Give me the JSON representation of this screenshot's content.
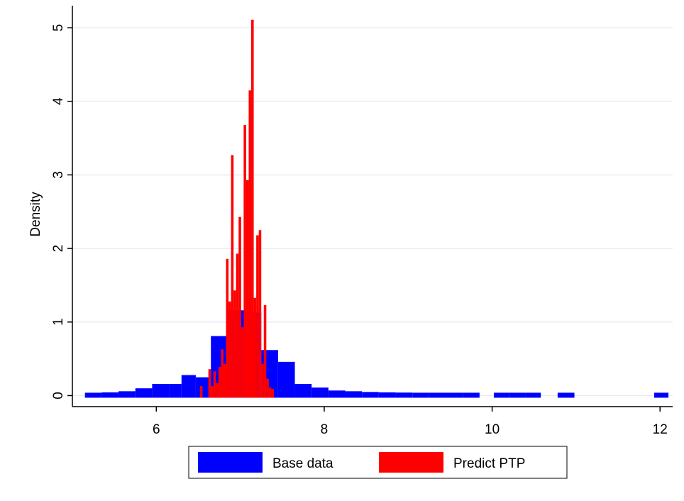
{
  "chart_data": {
    "type": "histogram",
    "title": "",
    "xlabel": "",
    "ylabel": "Density",
    "xlim": [
      5.0,
      12.15
    ],
    "ylim": [
      -0.15,
      5.3
    ],
    "xticks": [
      6,
      8,
      10,
      12
    ],
    "yticks": [
      0,
      1,
      2,
      3,
      4,
      5
    ],
    "grid": "horizontal",
    "legend_position": "bottom",
    "series": [
      {
        "name": "Base data",
        "color": "#0000FF",
        "bins": [
          {
            "x0": 5.15,
            "x1": 5.35,
            "y": 0.01
          },
          {
            "x0": 5.35,
            "x1": 5.55,
            "y": 0.015
          },
          {
            "x0": 5.55,
            "x1": 5.75,
            "y": 0.03
          },
          {
            "x0": 5.75,
            "x1": 5.95,
            "y": 0.07
          },
          {
            "x0": 5.95,
            "x1": 6.15,
            "y": 0.13
          },
          {
            "x0": 6.15,
            "x1": 6.3,
            "y": 0.13
          },
          {
            "x0": 6.3,
            "x1": 6.47,
            "y": 0.25
          },
          {
            "x0": 6.47,
            "x1": 6.65,
            "y": 0.22
          },
          {
            "x0": 6.65,
            "x1": 6.85,
            "y": 0.78
          },
          {
            "x0": 6.85,
            "x1": 7.05,
            "y": 1.13
          },
          {
            "x0": 7.05,
            "x1": 7.25,
            "y": 1.1
          },
          {
            "x0": 7.25,
            "x1": 7.45,
            "y": 0.59
          },
          {
            "x0": 7.45,
            "x1": 7.65,
            "y": 0.43
          },
          {
            "x0": 7.65,
            "x1": 7.85,
            "y": 0.13
          },
          {
            "x0": 7.85,
            "x1": 8.05,
            "y": 0.08
          },
          {
            "x0": 8.05,
            "x1": 8.25,
            "y": 0.04
          },
          {
            "x0": 8.25,
            "x1": 8.45,
            "y": 0.03
          },
          {
            "x0": 8.45,
            "x1": 8.65,
            "y": 0.02
          },
          {
            "x0": 8.65,
            "x1": 8.85,
            "y": 0.015
          },
          {
            "x0": 8.85,
            "x1": 9.05,
            "y": 0.012
          },
          {
            "x0": 9.05,
            "x1": 9.25,
            "y": 0.01
          },
          {
            "x0": 9.25,
            "x1": 9.45,
            "y": 0.01
          },
          {
            "x0": 9.45,
            "x1": 9.65,
            "y": 0.01
          },
          {
            "x0": 9.65,
            "x1": 9.85,
            "y": 0.01
          },
          {
            "x0": 10.02,
            "x1": 10.2,
            "y": 0.01
          },
          {
            "x0": 10.2,
            "x1": 10.4,
            "y": 0.01
          },
          {
            "x0": 10.4,
            "x1": 10.58,
            "y": 0.01
          },
          {
            "x0": 10.78,
            "x1": 10.98,
            "y": 0.01
          },
          {
            "x0": 11.93,
            "x1": 12.1,
            "y": 0.01
          }
        ]
      },
      {
        "name": "Predict PTP",
        "color": "#FF0000",
        "bins": [
          {
            "x0": 6.52,
            "x1": 6.55,
            "y": 0.1
          },
          {
            "x0": 6.62,
            "x1": 6.65,
            "y": 0.33
          },
          {
            "x0": 6.65,
            "x1": 6.68,
            "y": 0.1
          },
          {
            "x0": 6.68,
            "x1": 6.71,
            "y": 0.3
          },
          {
            "x0": 6.71,
            "x1": 6.74,
            "y": 0.14
          },
          {
            "x0": 6.74,
            "x1": 6.77,
            "y": 0.36
          },
          {
            "x0": 6.77,
            "x1": 6.8,
            "y": 0.6
          },
          {
            "x0": 6.8,
            "x1": 6.83,
            "y": 0.4
          },
          {
            "x0": 6.83,
            "x1": 6.86,
            "y": 1.83
          },
          {
            "x0": 6.86,
            "x1": 6.89,
            "y": 1.25
          },
          {
            "x0": 6.89,
            "x1": 6.92,
            "y": 3.24
          },
          {
            "x0": 6.92,
            "x1": 6.95,
            "y": 1.4
          },
          {
            "x0": 6.95,
            "x1": 6.98,
            "y": 1.9
          },
          {
            "x0": 6.98,
            "x1": 7.01,
            "y": 2.4
          },
          {
            "x0": 7.01,
            "x1": 7.04,
            "y": 0.9
          },
          {
            "x0": 7.04,
            "x1": 7.07,
            "y": 3.65
          },
          {
            "x0": 7.07,
            "x1": 7.1,
            "y": 2.9
          },
          {
            "x0": 7.1,
            "x1": 7.13,
            "y": 4.12
          },
          {
            "x0": 7.13,
            "x1": 7.16,
            "y": 5.08
          },
          {
            "x0": 7.16,
            "x1": 7.19,
            "y": 1.3
          },
          {
            "x0": 7.19,
            "x1": 7.22,
            "y": 2.15
          },
          {
            "x0": 7.22,
            "x1": 7.25,
            "y": 2.22
          },
          {
            "x0": 7.25,
            "x1": 7.28,
            "y": 0.4
          },
          {
            "x0": 7.28,
            "x1": 7.31,
            "y": 1.2
          },
          {
            "x0": 7.31,
            "x1": 7.34,
            "y": 0.2
          },
          {
            "x0": 7.34,
            "x1": 7.37,
            "y": 0.08
          },
          {
            "x0": 7.37,
            "x1": 7.4,
            "y": 0.06
          }
        ]
      }
    ]
  }
}
